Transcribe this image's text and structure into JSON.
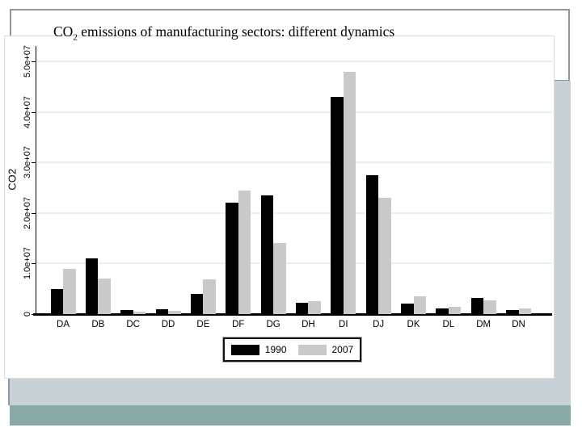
{
  "slide": {
    "title": {
      "prefix": "CO",
      "subscript": "2",
      "rest": " emissions of manufacturing sectors: different dynamics"
    }
  },
  "colors": {
    "bar_1990": "#000000",
    "bar_2007": "#c9c9c9",
    "gridline": "#e6f0ee",
    "band_light": "#c7d1d6",
    "band_teal": "#87a9a8",
    "title_box_border": "#8b98a0",
    "chart_border": "#d9dde0",
    "axis": "#000000"
  },
  "chart_data": {
    "type": "bar",
    "title": "",
    "xlabel": "",
    "ylabel": "CO2",
    "categories": [
      "DA",
      "DB",
      "DC",
      "DD",
      "DE",
      "DF",
      "DG",
      "DH",
      "DI",
      "DJ",
      "DK",
      "DL",
      "DM",
      "DN"
    ],
    "series": [
      {
        "name": "1990",
        "color": "#000000",
        "values": [
          5000000,
          11000000,
          800000,
          1000000,
          4000000,
          22000000,
          23500000,
          2300000,
          43000000,
          27500000,
          2100000,
          1100000,
          3200000,
          800000
        ]
      },
      {
        "name": "2007",
        "color": "#c9c9c9",
        "values": [
          9000000,
          7000000,
          500000,
          600000,
          6800000,
          24500000,
          14000000,
          2500000,
          48000000,
          23000000,
          3500000,
          1500000,
          2700000,
          1100000
        ]
      }
    ],
    "ylim": [
      0,
      52000000
    ],
    "yticks": {
      "values": [
        0,
        10000000,
        20000000,
        30000000,
        40000000,
        50000000
      ],
      "labels": [
        "0",
        "1.0e+07",
        "2.0e+07",
        "3.0e+07",
        "4.0e+07",
        "5.0e+07"
      ]
    },
    "grid": true,
    "legend_position": "bottom-center"
  }
}
